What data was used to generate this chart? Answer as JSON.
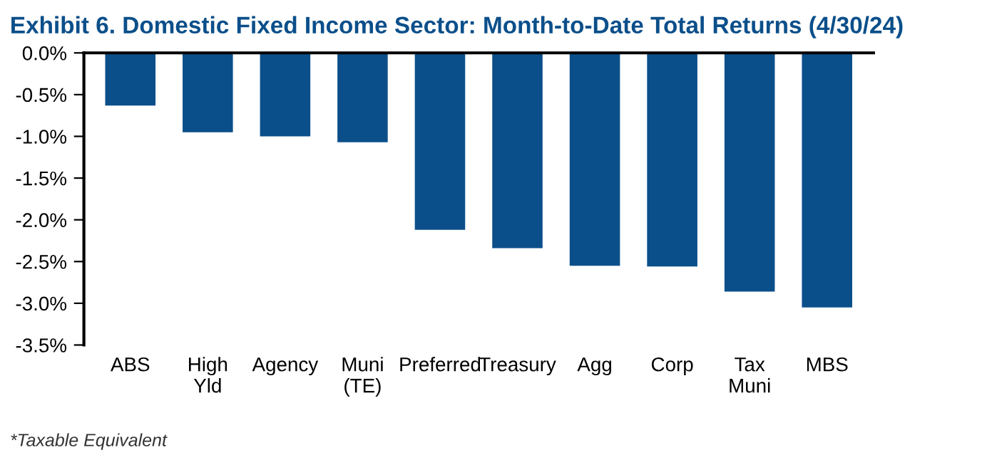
{
  "chart_data": {
    "type": "bar",
    "title": "Exhibit 6. Domestic Fixed Income Sector: Month-to-Date Total Returns (4/30/24)",
    "categories": [
      "ABS",
      "High\nYld",
      "Agency",
      "Muni\n(TE)",
      "Preferred",
      "Treasury",
      "Agg",
      "Corp",
      "Tax\nMuni",
      "MBS"
    ],
    "values": [
      -0.63,
      -0.95,
      -1.0,
      -1.07,
      -2.12,
      -2.34,
      -2.55,
      -2.56,
      -2.86,
      -3.05
    ],
    "color": "#0b4f8a",
    "ylim": [
      -3.5,
      0
    ],
    "yticks": [
      {
        "value": 0,
        "label": "0.0%"
      },
      {
        "value": -0.5,
        "label": "-0.5%"
      },
      {
        "value": -1.0,
        "label": "-1.0%"
      },
      {
        "value": -1.5,
        "label": "-1.5%"
      },
      {
        "value": -2.0,
        "label": "-2.0%"
      },
      {
        "value": -2.5,
        "label": "-2.5%"
      },
      {
        "value": -3.0,
        "label": "-3.0%"
      },
      {
        "value": -3.5,
        "label": "-3.5%"
      }
    ],
    "grid": false,
    "annotations": [
      "*Taxable Equivalent"
    ]
  }
}
